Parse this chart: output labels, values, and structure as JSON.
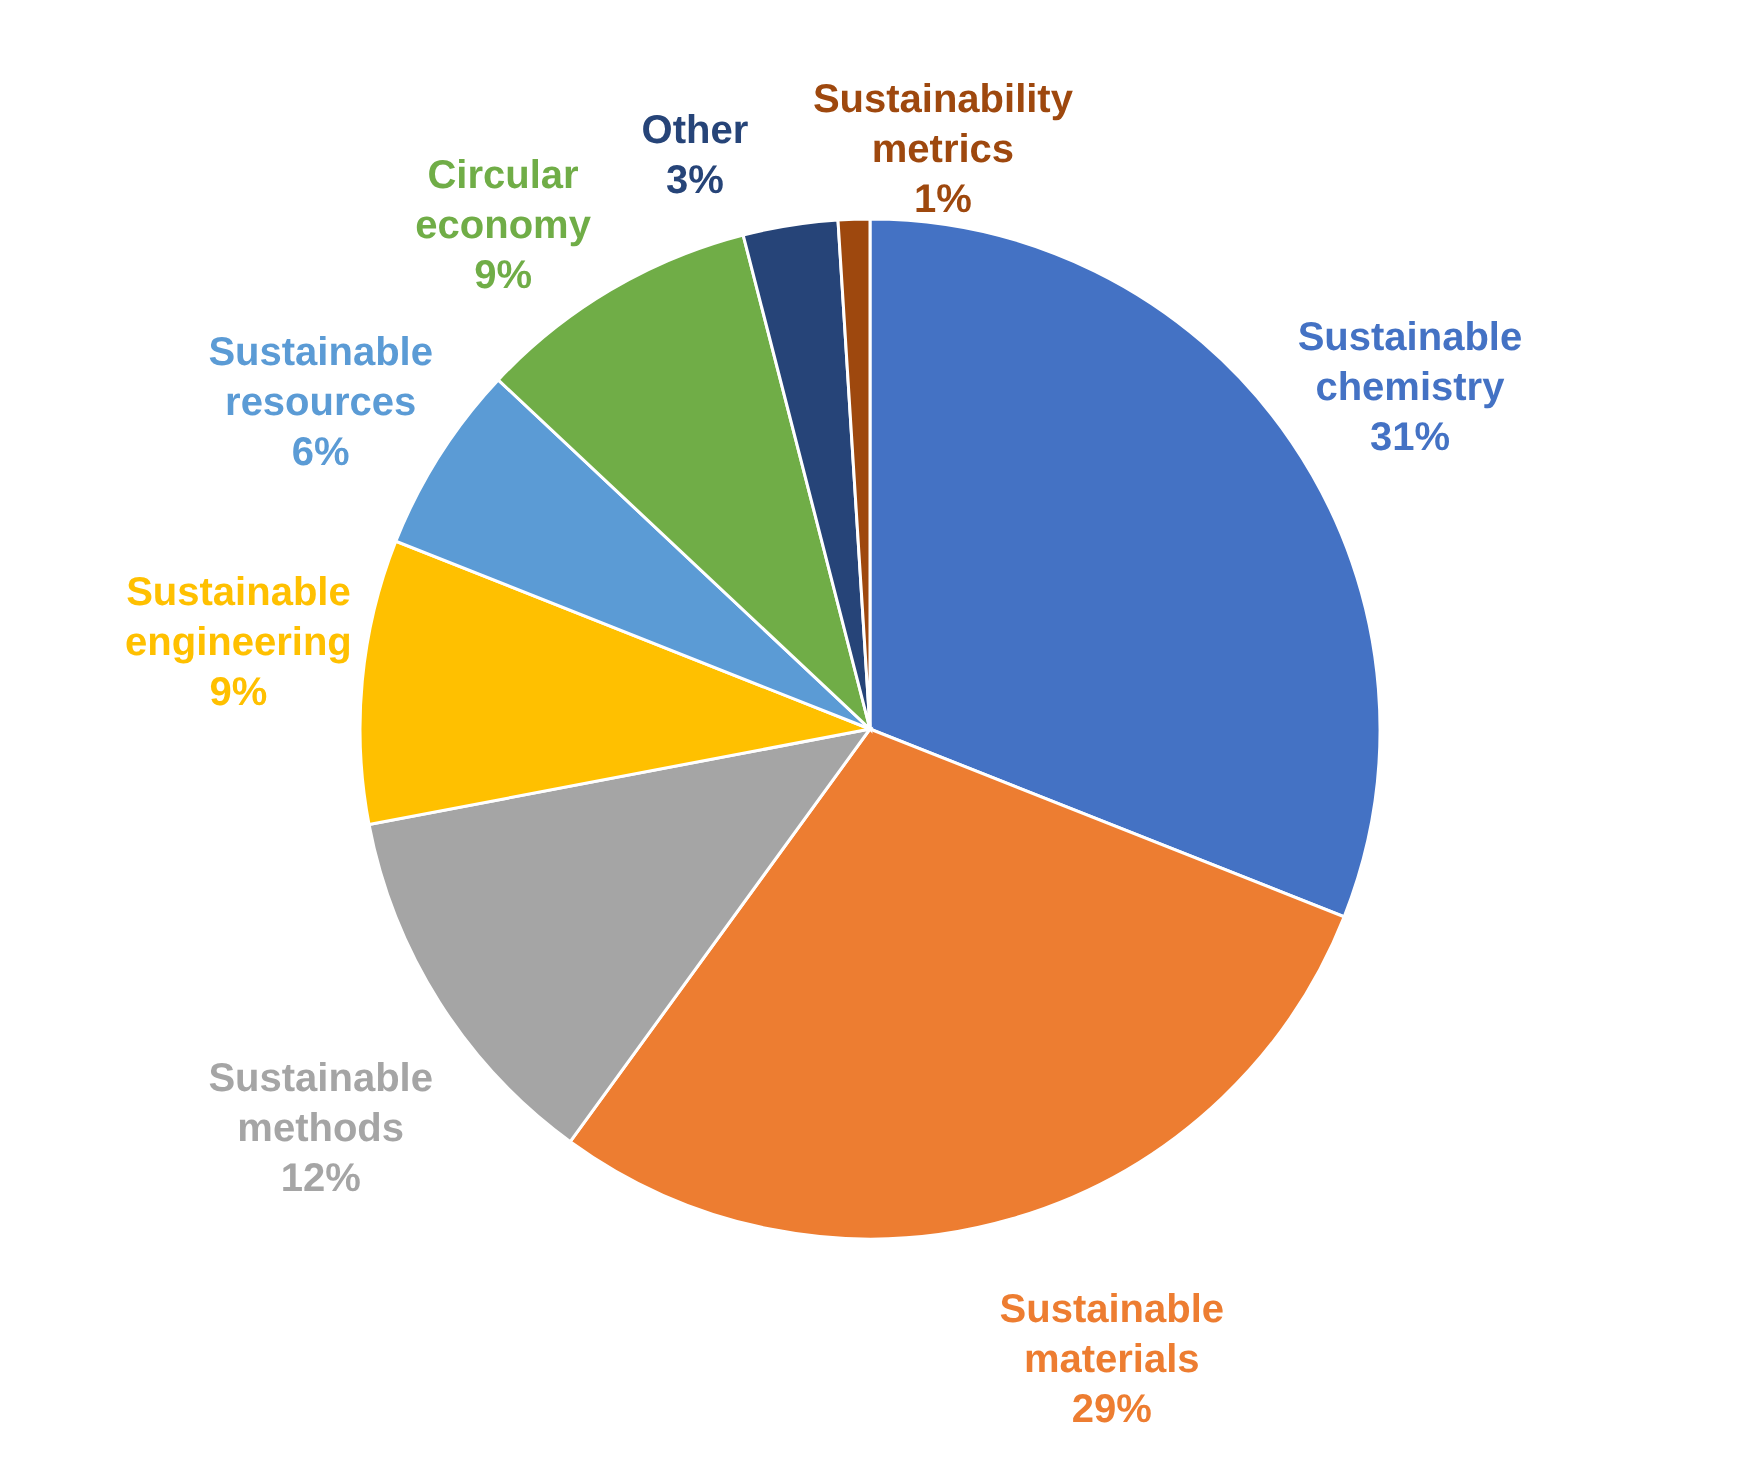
{
  "chart_data": {
    "type": "pie",
    "categories": [
      "Sustainable chemistry",
      "Sustainable materials",
      "Sustainable methods",
      "Sustainable engineering",
      "Sustainable resources",
      "Circular economy",
      "Other",
      "Sustainability metrics"
    ],
    "values": [
      31,
      29,
      12,
      9,
      6,
      9,
      3,
      1
    ],
    "value_labels": [
      "31%",
      "29%",
      "12%",
      "9%",
      "6%",
      "9%",
      "3%",
      "1%"
    ],
    "colors": [
      "#4472c4",
      "#ed7d31",
      "#a5a5a5",
      "#ffc000",
      "#5b9bd5",
      "#70ad47",
      "#264478",
      "#9e480e"
    ]
  }
}
